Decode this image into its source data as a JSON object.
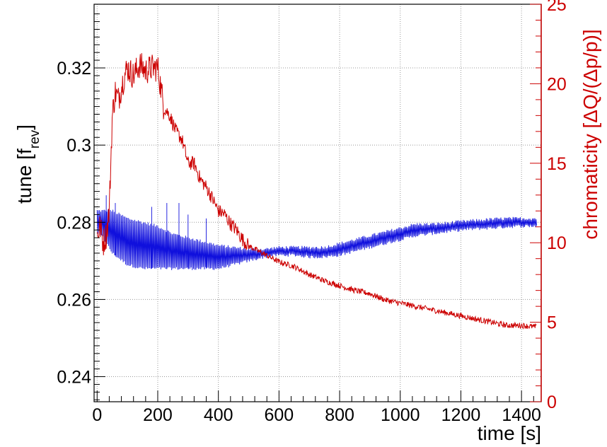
{
  "chart_data": {
    "type": "line",
    "xlabel": "time [s]",
    "ylabel_left": {
      "main": "tune [f",
      "sub": "rev",
      "close": "]"
    },
    "ylabel_right": "chromaticity [ΔQ/(Δp/p)]",
    "xlim": [
      -10,
      1465
    ],
    "ylim_left": [
      0.2335,
      0.3365
    ],
    "ylim_right": [
      0,
      25
    ],
    "x_ticks": [
      0,
      200,
      400,
      600,
      800,
      1000,
      1200,
      1400
    ],
    "y_ticks_left": [
      0.24,
      0.26,
      0.28,
      0.3,
      0.32
    ],
    "y_tick_labels_left": [
      "0.24",
      "0.26",
      "0.28",
      "0.3",
      "0.32"
    ],
    "y_ticks_right": [
      0,
      5,
      10,
      15,
      20,
      25
    ],
    "grid": true,
    "colors": {
      "tune": "#1010dd",
      "chromaticity": "#cc0000",
      "axis": "#000000",
      "grid": "#999999"
    },
    "series": [
      {
        "axis": "left",
        "style": "oscillating-band",
        "x": [
          0,
          20,
          50,
          100,
          150,
          200,
          250,
          300,
          350,
          400,
          450,
          500,
          550,
          600,
          650,
          700,
          750,
          800,
          850,
          900,
          950,
          1000,
          1050,
          1100,
          1150,
          1200,
          1250,
          1300,
          1350,
          1400,
          1450
        ],
        "low": [
          0.277,
          0.276,
          0.272,
          0.269,
          0.268,
          0.268,
          0.268,
          0.268,
          0.268,
          0.268,
          0.269,
          0.27,
          0.271,
          0.2715,
          0.2715,
          0.271,
          0.271,
          0.2715,
          0.2725,
          0.2735,
          0.2745,
          0.2755,
          0.2765,
          0.277,
          0.2775,
          0.278,
          0.2783,
          0.2785,
          0.2788,
          0.279,
          0.279
        ],
        "high": [
          0.283,
          0.283,
          0.283,
          0.281,
          0.28,
          0.279,
          0.277,
          0.276,
          0.275,
          0.274,
          0.2735,
          0.273,
          0.273,
          0.2735,
          0.2735,
          0.2735,
          0.2735,
          0.2745,
          0.2755,
          0.2765,
          0.2775,
          0.2785,
          0.2795,
          0.2795,
          0.2798,
          0.2802,
          0.2805,
          0.2808,
          0.281,
          0.281,
          0.281
        ]
      },
      {
        "axis": "right",
        "style": "noisy-line",
        "x": [
          0,
          10,
          20,
          30,
          40,
          50,
          60,
          70,
          80,
          90,
          100,
          120,
          140,
          160,
          180,
          200,
          210,
          220,
          240,
          260,
          280,
          300,
          320,
          340,
          360,
          380,
          400,
          420,
          440,
          460,
          480,
          500,
          550,
          600,
          650,
          700,
          750,
          800,
          850,
          900,
          950,
          1000,
          1050,
          1100,
          1150,
          1200,
          1250,
          1300,
          1350,
          1400,
          1450
        ],
        "y": [
          10.5,
          11.0,
          10.0,
          10.5,
          12.0,
          18.0,
          19.5,
          19.0,
          19.8,
          20.5,
          21.0,
          20.5,
          21.2,
          20.8,
          21.0,
          21.0,
          19.8,
          18.5,
          18.0,
          17.0,
          16.5,
          15.0,
          15.0,
          14.0,
          13.5,
          12.8,
          12.0,
          11.8,
          11.2,
          10.8,
          10.2,
          9.8,
          9.3,
          8.8,
          8.5,
          8.0,
          7.6,
          7.3,
          7.0,
          6.8,
          6.4,
          6.2,
          6.0,
          5.8,
          5.6,
          5.4,
          5.2,
          5.0,
          4.8,
          4.8,
          4.7
        ]
      }
    ]
  }
}
